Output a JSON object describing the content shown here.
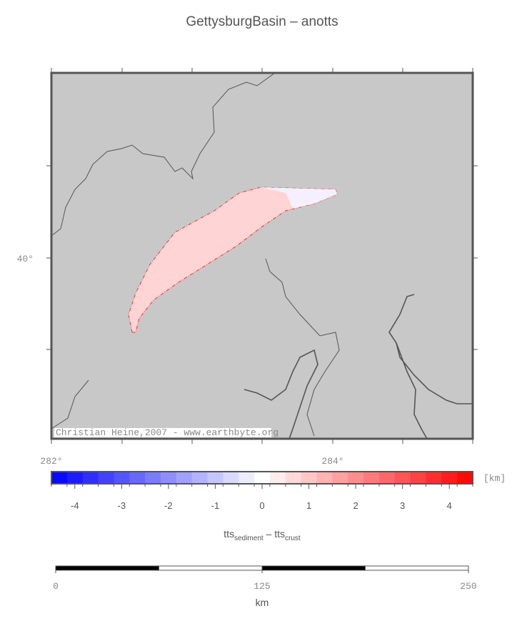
{
  "title": "GettysburgBasin – anotts",
  "map": {
    "x_labels": [
      "282°",
      "284°"
    ],
    "y_labels": [
      "40°"
    ],
    "credit": "Christian Heine,2007 - www.earthbyte.org"
  },
  "colorbar": {
    "range": [
      -4.5,
      4.5
    ],
    "ticks": [
      -4,
      -3,
      -2,
      -1,
      0,
      1,
      2,
      3,
      4
    ],
    "unit": "[km]",
    "label_parts": [
      "tts",
      "sediment",
      " – ",
      "tts",
      "crust"
    ]
  },
  "scalebar": {
    "range": [
      0,
      250
    ],
    "ticks": [
      0,
      125,
      250
    ],
    "unit": "km"
  }
}
